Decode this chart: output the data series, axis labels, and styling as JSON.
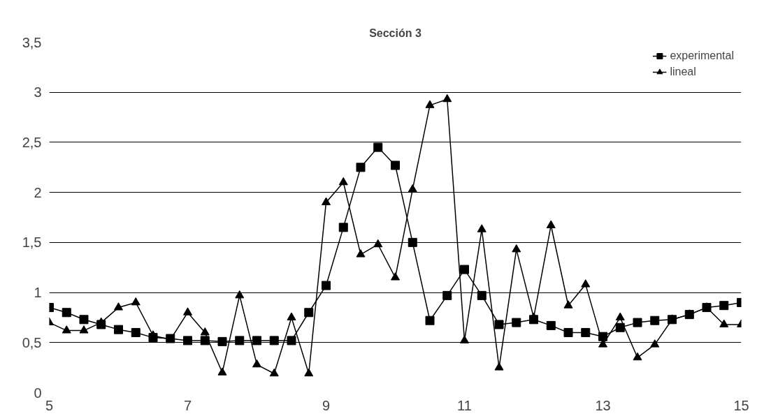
{
  "chart_data": {
    "type": "line",
    "title": "Sección 3",
    "x": [
      5,
      5.25,
      5.5,
      5.75,
      6,
      6.25,
      6.5,
      6.75,
      7,
      7.25,
      7.5,
      7.75,
      8,
      8.25,
      8.5,
      8.75,
      9,
      9.25,
      9.5,
      9.75,
      10,
      10.25,
      10.5,
      10.75,
      11,
      11.25,
      11.5,
      11.75,
      12,
      12.25,
      12.5,
      12.75,
      13,
      13.25,
      13.5,
      13.75,
      14,
      14.25,
      14.5,
      14.75,
      15
    ],
    "series": [
      {
        "name": "experimental",
        "color": "#000000",
        "marker": "square",
        "values": [
          0.85,
          0.8,
          0.73,
          0.68,
          0.63,
          0.6,
          0.55,
          0.54,
          0.52,
          0.52,
          0.51,
          0.52,
          0.52,
          0.52,
          0.52,
          0.8,
          1.07,
          1.65,
          2.25,
          2.45,
          2.27,
          1.5,
          0.72,
          0.97,
          1.23,
          0.97,
          0.68,
          0.7,
          0.73,
          0.67,
          0.6,
          0.6,
          0.56,
          0.65,
          0.7,
          0.72,
          0.73,
          0.78,
          0.85,
          0.87,
          0.9
        ]
      },
      {
        "name": "lineal",
        "color": "#000000",
        "marker": "triangle",
        "values": [
          0.7,
          0.62,
          0.62,
          0.7,
          0.85,
          0.9,
          0.57,
          0.53,
          0.8,
          0.6,
          0.2,
          0.97,
          0.28,
          0.19,
          0.75,
          0.19,
          1.9,
          2.1,
          1.38,
          1.48,
          1.15,
          2.03,
          2.87,
          2.93,
          0.52,
          1.63,
          0.25,
          1.43,
          0.75,
          1.67,
          0.87,
          1.08,
          0.48,
          0.75,
          0.35,
          0.48,
          0.73,
          0.78,
          0.85,
          0.68,
          0.68
        ]
      }
    ],
    "xlim": [
      5,
      15
    ],
    "xticks": [
      5,
      7,
      9,
      11,
      13,
      15
    ],
    "ylim": [
      0,
      3.5
    ],
    "yticks": [
      0,
      {
        "value": 0.5,
        "label": "0,5"
      },
      1,
      {
        "value": 1.5,
        "label": "1,5"
      },
      2,
      {
        "value": 2.5,
        "label": "2,5"
      },
      3,
      {
        "value": 3.5,
        "label": "3,5"
      }
    ],
    "grid": "y",
    "legend": "top right",
    "line_style": "solid"
  }
}
